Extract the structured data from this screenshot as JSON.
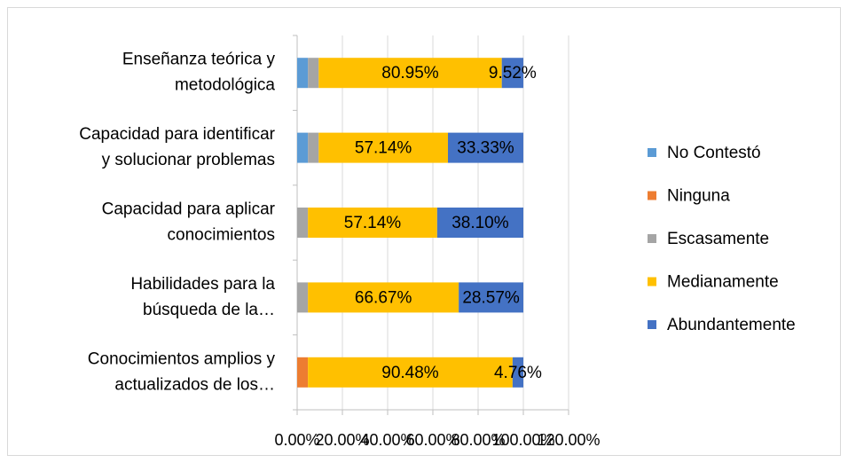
{
  "chart_data": {
    "type": "stacked-barh",
    "categories": [
      [
        "Enseñanza teórica y",
        "metodológica"
      ],
      [
        "Capacidad para identificar",
        "y solucionar problemas"
      ],
      [
        "Capacidad para aplicar",
        "conocimientos"
      ],
      [
        "Habilidades para la",
        "búsqueda de la…"
      ],
      [
        "Conocimientos amplios y",
        "actualizados de los…"
      ]
    ],
    "series": [
      {
        "name": "No Contestó",
        "color": "#5b9bd5",
        "values": [
          4.76,
          4.76,
          0,
          0,
          0
        ]
      },
      {
        "name": "Ninguna",
        "color": "#ed7d31",
        "values": [
          0,
          0,
          0,
          0,
          4.76
        ]
      },
      {
        "name": "Escasamente",
        "color": "#a5a5a5",
        "values": [
          4.76,
          4.76,
          4.76,
          4.76,
          0
        ]
      },
      {
        "name": "Medianamente",
        "color": "#ffc000",
        "values": [
          80.95,
          57.14,
          57.14,
          66.67,
          90.48
        ],
        "value_labels": [
          "80.95%",
          "57.14%",
          "57.14%",
          "66.67%",
          "90.48%"
        ]
      },
      {
        "name": "Abundantemente",
        "color": "#4472c4",
        "values": [
          9.52,
          33.33,
          38.1,
          28.57,
          4.76
        ],
        "value_labels": [
          "9.52%",
          "33.33%",
          "38.10%",
          "28.57%",
          "4.76%"
        ]
      }
    ],
    "xlim": [
      0,
      120
    ],
    "xticks": [
      {
        "value": 0,
        "label": "0.00%"
      },
      {
        "value": 20,
        "label": "20.00%"
      },
      {
        "value": 40,
        "label": "40.00%"
      },
      {
        "value": 60,
        "label": "60.00%"
      },
      {
        "value": 80,
        "label": "80.00%"
      },
      {
        "value": 100,
        "label": "100.00%"
      },
      {
        "value": 120,
        "label": "120.00%"
      }
    ],
    "grid": true,
    "legend": "right"
  }
}
